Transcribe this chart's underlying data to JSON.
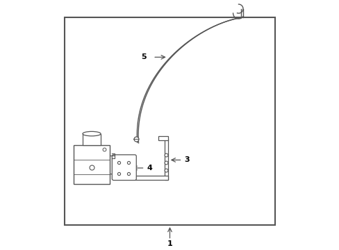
{
  "bg_color": "#ffffff",
  "border_color": "#555555",
  "line_color": "#555555",
  "label_color": "#000000",
  "fig_width": 4.89,
  "fig_height": 3.6,
  "dpi": 100,
  "border": [
    0.08,
    0.1,
    0.84,
    0.83
  ],
  "parts": {
    "cable_label": "5",
    "servo_label": "2",
    "plate_label": "4",
    "bracket_label": "3",
    "assembly_label": "1"
  },
  "cable_path": {
    "x": [
      0.38,
      0.4,
      0.42,
      0.45,
      0.5,
      0.56,
      0.62,
      0.68,
      0.73,
      0.76,
      0.78,
      0.79,
      0.79,
      0.78
    ],
    "y": [
      0.42,
      0.5,
      0.58,
      0.65,
      0.72,
      0.78,
      0.83,
      0.87,
      0.9,
      0.92,
      0.93,
      0.93,
      0.92,
      0.91
    ]
  },
  "cable_path2": {
    "x": [
      0.385,
      0.405,
      0.425,
      0.455,
      0.505,
      0.565,
      0.625,
      0.685,
      0.735,
      0.765,
      0.785,
      0.795,
      0.795,
      0.785
    ],
    "y": [
      0.415,
      0.495,
      0.575,
      0.645,
      0.715,
      0.775,
      0.825,
      0.865,
      0.895,
      0.915,
      0.925,
      0.925,
      0.915,
      0.905
    ]
  }
}
